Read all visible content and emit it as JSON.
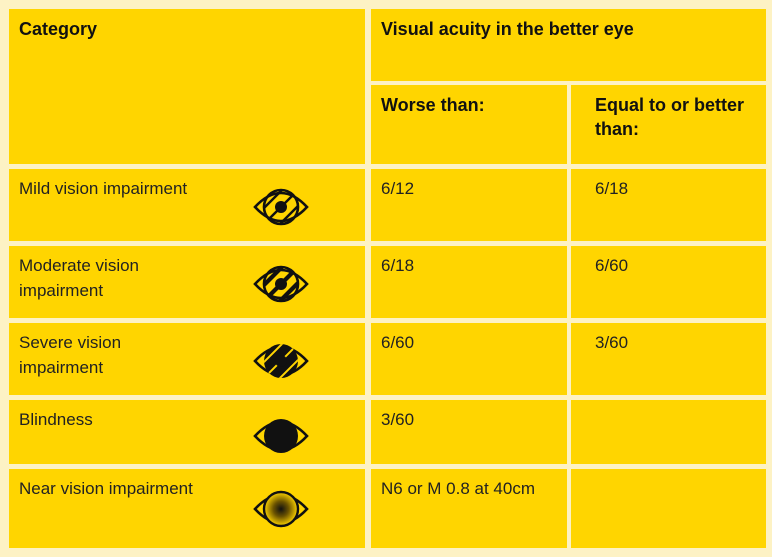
{
  "header": {
    "category_label": "Category",
    "acuity_label": "Visual acuity in the better eye",
    "worse_label": "Worse than:",
    "better_label": "Equal to or better than:"
  },
  "rows": [
    {
      "category": "Mild vision impairment",
      "icon": "eye-mild-impairment-icon",
      "worse_than": "6/12",
      "equal_or_better": "6/18"
    },
    {
      "category": "Moderate vision impairment",
      "icon": "eye-moderate-impairment-icon",
      "worse_than": "6/18",
      "equal_or_better": "6/60"
    },
    {
      "category": "Severe vision impairment",
      "icon": "eye-severe-impairment-icon",
      "worse_than": "6/60",
      "equal_or_better": "3/60"
    },
    {
      "category": "Blindness",
      "icon": "eye-blindness-icon",
      "worse_than": "3/60",
      "equal_or_better": ""
    },
    {
      "category": "Near vision impairment",
      "icon": "eye-near-vision-icon",
      "worse_than": "N6 or M 0.8 at 40cm",
      "equal_or_better": ""
    }
  ],
  "colors": {
    "cell_background": "#FFD500",
    "page_background": "#FDF2C4",
    "text": "#111111"
  }
}
